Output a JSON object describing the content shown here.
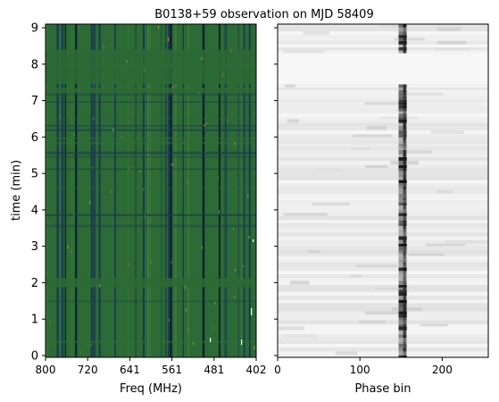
{
  "title": "B0138+59 observation on MJD 58409",
  "chart_data": [
    {
      "type": "heatmap",
      "name": "frequency-time waterfall",
      "xlabel": "Freq (MHz)",
      "ylabel": "time (min)",
      "x_ticks": [
        "800",
        "720",
        "641",
        "561",
        "481",
        "402"
      ],
      "xlim": [
        800,
        402
      ],
      "y_ticks": [
        "0",
        "1",
        "2",
        "3",
        "4",
        "5",
        "6",
        "7",
        "8",
        "9"
      ],
      "ylim": [
        -0.05,
        9.1
      ],
      "background_color": "#2d6a35",
      "channel_color": "#14305a",
      "flagged_time_bands": [
        [
          1.88,
          2.12
        ],
        [
          7.2,
          7.35
        ],
        [
          7.45,
          8.4
        ]
      ],
      "bright_channel_colors": [
        "#7a8a2a",
        "#b8b23a"
      ]
    },
    {
      "type": "heatmap",
      "name": "phase-time waterfall",
      "xlabel": "Phase bin",
      "ylabel": "",
      "x_ticks": [
        "0",
        "100",
        "200"
      ],
      "xlim": [
        0,
        256
      ],
      "ylim": [
        -0.05,
        9.1
      ],
      "colormap": "gray_r",
      "pulse_phase_bin": 152,
      "pulse_width_bins": 10,
      "gap_time_bands": [
        [
          7.45,
          8.3
        ]
      ]
    }
  ]
}
